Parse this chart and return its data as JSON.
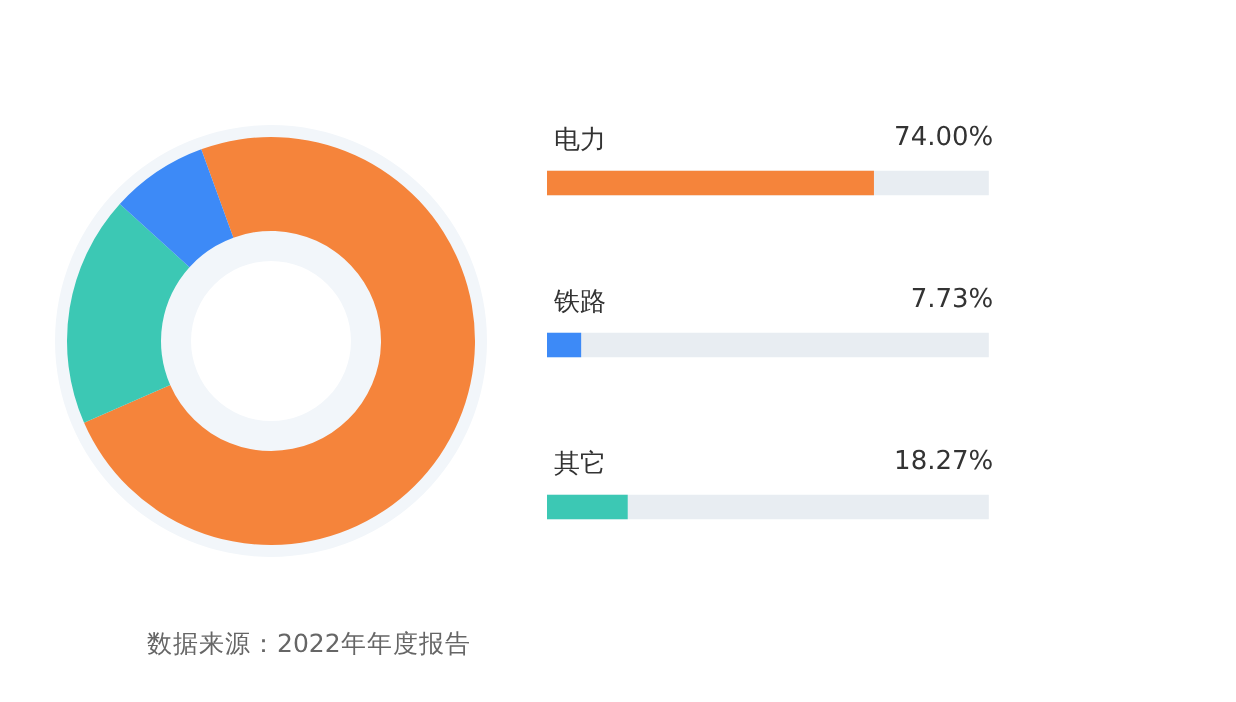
{
  "chart_data": [
    {
      "type": "donut",
      "categories": [
        null,
        null,
        null
      ],
      "values": [
        74.0,
        18.27,
        7.73
      ],
      "colors": [
        "#f5843b",
        "#3cc8b4",
        "#3d8af7"
      ]
    },
    {
      "type": "bar",
      "orientation": "horizontal",
      "categories": [
        "电力",
        "铁路",
        "其它"
      ],
      "values": [
        74.0,
        7.73,
        18.27
      ],
      "colors": [
        "#f5843b",
        "#3d8af7",
        "#3cc8b4"
      ],
      "xlim": [
        0,
        100
      ],
      "value_labels": [
        "74.00%",
        "7.73%",
        "18.27%"
      ],
      "annotations": [
        "数据来源：2022年年度报告"
      ]
    }
  ]
}
